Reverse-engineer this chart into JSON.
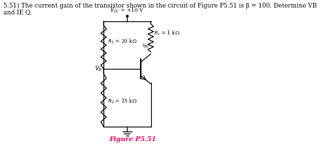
{
  "bg_color": "#ffffff",
  "figure_caption_color": "#ff0066",
  "title_line1": "5.51) The current gain of the transistor shown in the circuit of Figure P5.51 is β = 100. Determine VB",
  "title_line2": "and IE Q.",
  "vcc_label": "V = +10 V",
  "r1_label": "R₁ = 20 kΩ",
  "r2_label": "R₂ = 15 kΩ",
  "rc_label": "Rₑ = 1 kΩ",
  "ib_label": "Iₐ₀",
  "vb_label": "V₂",
  "caption": "Figure P5.51"
}
